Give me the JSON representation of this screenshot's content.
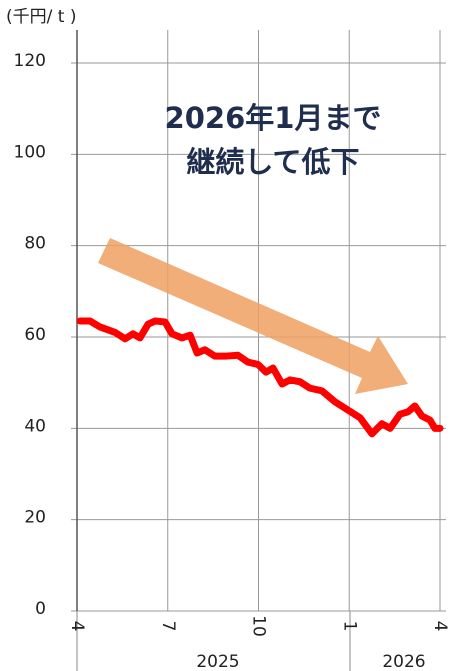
{
  "chart_data": {
    "type": "line",
    "y_label": "(千円/ t )",
    "annotation": [
      "2026年1月まで",
      "継続して低下"
    ],
    "year_labels": [
      "2025",
      "2026"
    ],
    "x": [
      0.1,
      0.43,
      0.76,
      1.26,
      1.59,
      1.85,
      2.08,
      2.35,
      2.58,
      2.91,
      3.14,
      3.47,
      3.74,
      3.97,
      4.23,
      4.56,
      4.89,
      5.32,
      5.65,
      5.98,
      6.25,
      6.48,
      6.78,
      7.04,
      7.37,
      7.7,
      8.1,
      8.53,
      8.86,
      9.36,
      9.75,
      10.08,
      10.35,
      10.68,
      10.94,
      11.17,
      11.4,
      11.67,
      11.83,
      12
    ],
    "series": [
      {
        "color": "#ff0000",
        "values": [
          63.5,
          63.5,
          62.2,
          61,
          59.6,
          60.7,
          59.8,
          62.8,
          63.5,
          63.3,
          60.7,
          59.8,
          60.4,
          56.5,
          57.2,
          55.8,
          55.8,
          56,
          54.5,
          54,
          52.3,
          53.2,
          49.7,
          50.6,
          50.2,
          48.8,
          48.2,
          45.8,
          44.4,
          42.3,
          38.8,
          41,
          40,
          43.1,
          43.6,
          44.9,
          42.7,
          41.8,
          40,
          40
        ]
      }
    ],
    "xlim": [
      0,
      12
    ],
    "xticks": [
      {
        "value": 0,
        "label": "4"
      },
      {
        "value": 3,
        "label": "7"
      },
      {
        "value": 6,
        "label": "10"
      },
      {
        "value": 9,
        "label": "1"
      },
      {
        "value": 12,
        "label": "4"
      }
    ],
    "ylim": [
      0,
      120
    ],
    "yticks": [
      0,
      20,
      40,
      60,
      80,
      100,
      120
    ],
    "grid": true
  }
}
